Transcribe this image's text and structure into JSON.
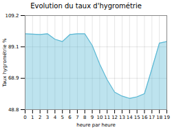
{
  "chart_data": {
    "type": "area",
    "title": "Evolution du taux d'hygrométrie",
    "xlabel": "heure par heure",
    "ylabel": "Taux hygrométrie %",
    "x": [
      0,
      1,
      2,
      3,
      4,
      5,
      6,
      7,
      8,
      9,
      10,
      11,
      12,
      13,
      14,
      15,
      16,
      17,
      18,
      19
    ],
    "values": [
      97.5,
      97.3,
      97.0,
      97.5,
      94.0,
      92.5,
      97.0,
      97.5,
      97.5,
      90.0,
      78.0,
      68.0,
      60.0,
      57.5,
      56.0,
      57.0,
      59.0,
      75.0,
      91.5,
      92.5
    ],
    "color": "#5bb8d4",
    "xlim": [
      0,
      19
    ],
    "ylim": [
      48.8,
      109.2
    ],
    "xticks": [
      0,
      1,
      2,
      3,
      4,
      5,
      6,
      7,
      8,
      9,
      10,
      11,
      12,
      13,
      14,
      15,
      16,
      17,
      18,
      19
    ],
    "yticks": [
      48.8,
      68.9,
      89.1,
      109.2
    ],
    "grid": true
  }
}
